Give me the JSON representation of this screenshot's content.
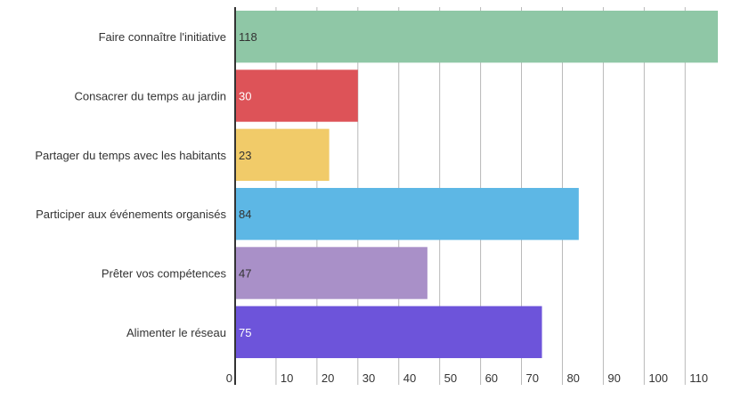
{
  "chart_data": {
    "type": "bar",
    "orientation": "horizontal",
    "categories": [
      "Faire connaître l'initiative",
      "Consacrer du temps au jardin",
      "Partager du temps avec les habitants",
      "Participer aux événements organisés",
      "Prêter vos compétences",
      "Alimenter le réseau"
    ],
    "values": [
      118,
      30,
      23,
      84,
      47,
      75
    ],
    "data_labels": [
      "118",
      "30",
      "23",
      "84",
      "47",
      "75"
    ],
    "colors": [
      "#8fc7a6",
      "#dd5358",
      "#f1cb69",
      "#5db7e5",
      "#a990c8",
      "#6d54da"
    ],
    "label_colors": [
      "#333333",
      "#ffffff",
      "#333333",
      "#333333",
      "#333333",
      "#ffffff"
    ],
    "xlim": [
      0,
      118
    ],
    "xticks": [
      0,
      10,
      20,
      30,
      40,
      50,
      60,
      70,
      80,
      90,
      100,
      110
    ],
    "xtick_labels": [
      "0",
      "10",
      "20",
      "30",
      "40",
      "50",
      "60",
      "70",
      "80",
      "90",
      "100",
      "110"
    ],
    "grid": true,
    "legend": "none",
    "title": "",
    "xlabel": "",
    "ylabel": ""
  }
}
